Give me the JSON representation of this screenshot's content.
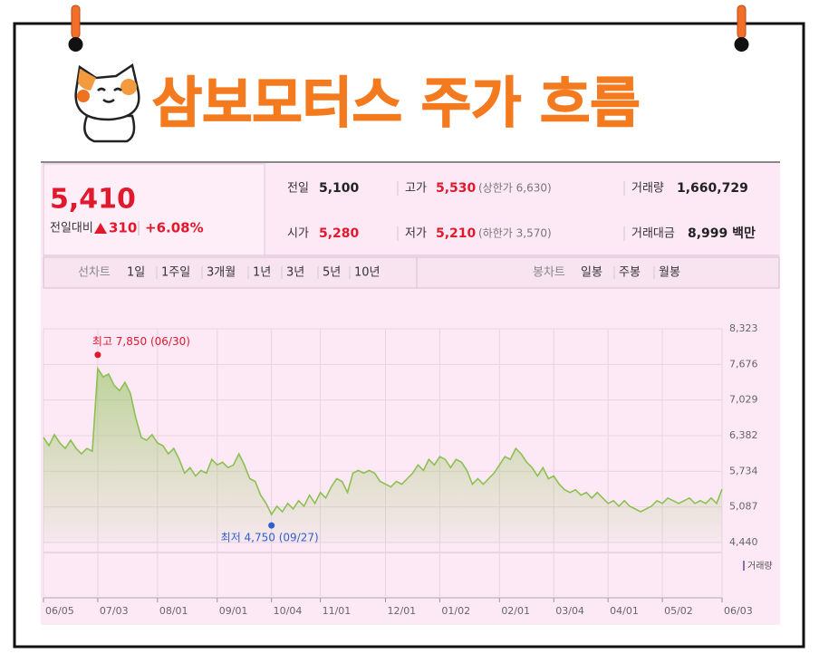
{
  "header": {
    "title": "삼보모터스 주가 흐름"
  },
  "quote": {
    "price": "5,410",
    "change_label": "전일대비",
    "change": "310",
    "change_pct": "+6.08%",
    "rows": [
      [
        {
          "label": "전일",
          "value": "5,100"
        },
        {
          "label": "고가",
          "value": "5,530",
          "extra": "(상한가 6,630)"
        },
        {
          "label": "거래량",
          "value": "1,660,729"
        }
      ],
      [
        {
          "label": "시가",
          "value": "5,280"
        },
        {
          "label": "저가",
          "value": "5,210",
          "extra": "(하한가 3,570)"
        },
        {
          "label": "거래대금",
          "value": "8,999 백만"
        }
      ]
    ]
  },
  "tabs": {
    "line_label": "선차트",
    "line_periods": [
      "1일",
      "1주일",
      "3개월",
      "1년",
      "3년",
      "5년",
      "10년"
    ],
    "candle_label": "봉차트",
    "candle_periods": [
      "일봉",
      "주봉",
      "월봉"
    ]
  },
  "chart_data": {
    "type": "line",
    "color": "#8cc152",
    "grid": true,
    "volume_legend": "거래량",
    "categories": [
      "06/05",
      null,
      null,
      null,
      null,
      null,
      null,
      null,
      null,
      null,
      "07/03",
      null,
      null,
      null,
      null,
      null,
      null,
      null,
      null,
      null,
      null,
      "08/01",
      null,
      null,
      null,
      null,
      null,
      null,
      null,
      null,
      null,
      null,
      "09/01",
      null,
      null,
      null,
      null,
      null,
      null,
      null,
      null,
      null,
      "10/04",
      null,
      null,
      null,
      null,
      null,
      null,
      null,
      null,
      "11/01",
      null,
      null,
      null,
      null,
      null,
      null,
      null,
      null,
      null,
      null,
      null,
      "12/01",
      null,
      null,
      null,
      null,
      null,
      null,
      null,
      null,
      null,
      "01/02",
      null,
      null,
      null,
      null,
      null,
      null,
      null,
      null,
      null,
      null,
      "02/01",
      null,
      null,
      null,
      null,
      null,
      null,
      null,
      null,
      null,
      "03/04",
      null,
      null,
      null,
      null,
      null,
      null,
      null,
      null,
      null,
      "04/01",
      null,
      null,
      null,
      null,
      null,
      null,
      null,
      null,
      null,
      "05/02",
      null,
      null,
      null,
      null,
      null,
      null,
      null,
      null,
      null,
      null,
      "06/03"
    ],
    "values": [
      6350,
      6200,
      6400,
      6250,
      6150,
      6300,
      6150,
      6050,
      6150,
      6100,
      7600,
      7450,
      7500,
      7300,
      7200,
      7350,
      7150,
      6700,
      6350,
      6300,
      6400,
      6250,
      6200,
      6050,
      6150,
      5950,
      5700,
      5800,
      5650,
      5750,
      5700,
      5950,
      5850,
      5900,
      5800,
      5850,
      6050,
      5850,
      5600,
      5550,
      5300,
      5150,
      4950,
      5100,
      5000,
      5150,
      5050,
      5200,
      5100,
      5300,
      5150,
      5350,
      5250,
      5450,
      5600,
      5550,
      5350,
      5700,
      5750,
      5700,
      5750,
      5700,
      5550,
      5500,
      5450,
      5550,
      5500,
      5600,
      5700,
      5850,
      5750,
      5950,
      5850,
      6000,
      5950,
      5800,
      5950,
      5900,
      5750,
      5500,
      5600,
      5500,
      5600,
      5700,
      5850,
      6000,
      5950,
      6150,
      6050,
      5900,
      5800,
      5650,
      5800,
      5600,
      5650,
      5500,
      5400,
      5350,
      5400,
      5300,
      5350,
      5250,
      5350,
      5250,
      5150,
      5200,
      5100,
      5200,
      5100,
      5050,
      5000,
      5050,
      5100,
      5200,
      5150,
      5250,
      5200,
      5150,
      5200,
      5250,
      5150,
      5200,
      5150,
      5250,
      5150,
      5410
    ],
    "ylim": [
      4440,
      8323
    ],
    "yticks": [
      {
        "value": 4440,
        "label": "4,440"
      },
      {
        "value": 5087,
        "label": "5,087"
      },
      {
        "value": 5734,
        "label": "5,734"
      },
      {
        "value": 6382,
        "label": "6,382"
      },
      {
        "value": 7029,
        "label": "7,029"
      },
      {
        "value": 7676,
        "label": "7,676"
      },
      {
        "value": 8323,
        "label": "8,323"
      }
    ],
    "annotations": [
      {
        "label": "최고 7,850 (06/30)",
        "value": 7850,
        "color": "#e0192d"
      },
      {
        "label": "최저 4,750 (09/27)",
        "value": 4750,
        "color": "#2f5fd0"
      }
    ]
  }
}
